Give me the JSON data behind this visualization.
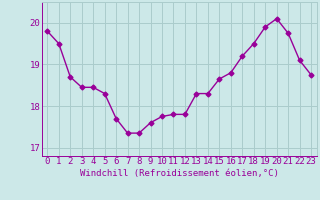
{
  "x": [
    0,
    1,
    2,
    3,
    4,
    5,
    6,
    7,
    8,
    9,
    10,
    11,
    12,
    13,
    14,
    15,
    16,
    17,
    18,
    19,
    20,
    21,
    22,
    23
  ],
  "y": [
    19.8,
    19.5,
    18.7,
    18.45,
    18.45,
    18.3,
    17.7,
    17.35,
    17.35,
    17.6,
    17.75,
    17.8,
    17.8,
    18.3,
    18.3,
    18.65,
    18.8,
    19.2,
    19.5,
    19.9,
    20.1,
    19.75,
    19.1,
    18.75
  ],
  "line_color": "#990099",
  "marker": "D",
  "marker_size": 2.5,
  "bg_color": "#cce8e8",
  "grid_color": "#aacccc",
  "xlabel": "Windchill (Refroidissement éolien,°C)",
  "ylabel": "",
  "ylim": [
    16.8,
    20.5
  ],
  "yticks": [
    17,
    18,
    19,
    20
  ],
  "xticks": [
    0,
    1,
    2,
    3,
    4,
    5,
    6,
    7,
    8,
    9,
    10,
    11,
    12,
    13,
    14,
    15,
    16,
    17,
    18,
    19,
    20,
    21,
    22,
    23
  ],
  "tick_color": "#990099",
  "label_color": "#990099",
  "font_family": "monospace",
  "xlabel_fontsize": 6.5,
  "tick_fontsize": 6.5,
  "linewidth": 1.0
}
